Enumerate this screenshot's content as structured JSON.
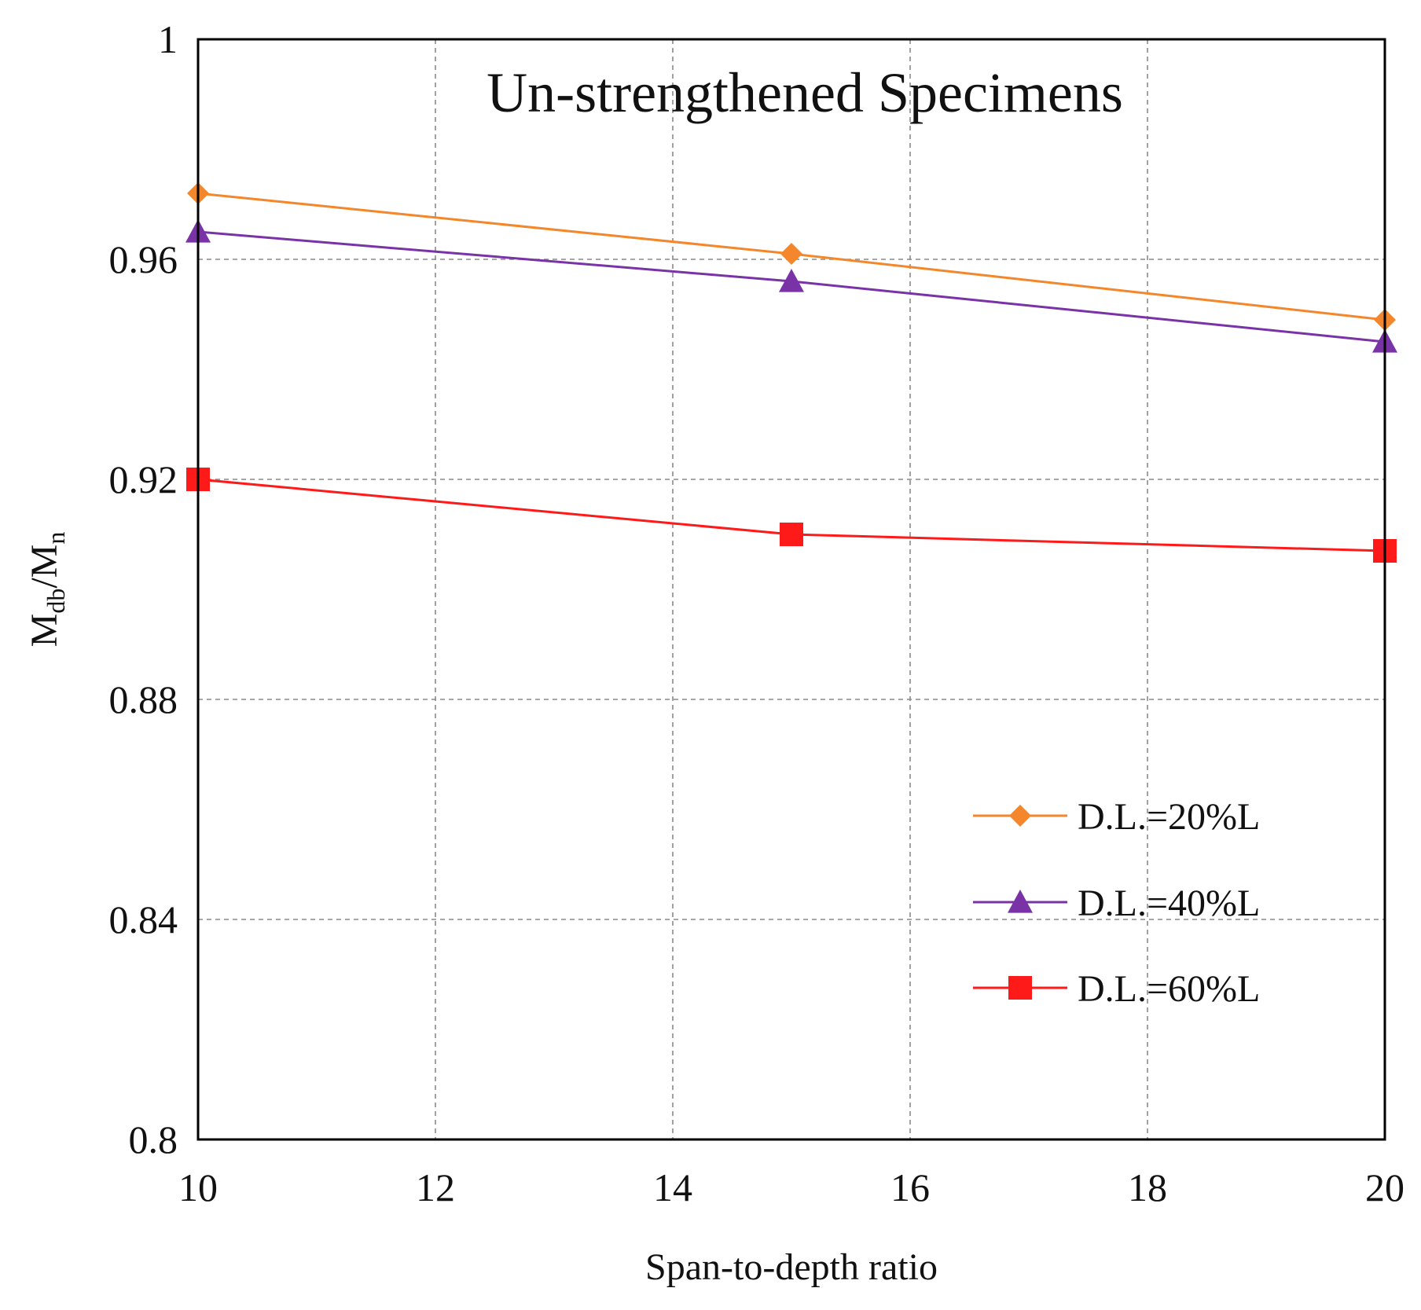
{
  "chart_data": {
    "type": "line",
    "title": "Un-strengthened Specimens",
    "xlabel": "Span-to-depth ratio",
    "ylabel": {
      "main": "M",
      "sub1": "db",
      "sep": "/M",
      "sub2": "n"
    },
    "xlim": [
      10,
      20
    ],
    "ylim": [
      0.8,
      1.0
    ],
    "x_ticks": [
      10,
      12,
      14,
      16,
      18,
      20
    ],
    "x_tick_labels": [
      "10",
      "12",
      "14",
      "16",
      "18",
      "20"
    ],
    "y_ticks": [
      0.8,
      0.84,
      0.88,
      0.92,
      0.96,
      1.0
    ],
    "y_tick_labels": [
      "0.8",
      "0.84",
      "0.88",
      "0.92",
      "0.96",
      "1"
    ],
    "grid": true,
    "legend_position": "right",
    "x": [
      10,
      15,
      20
    ],
    "series": [
      {
        "name": "D.L.=20%L",
        "values": [
          0.972,
          0.961,
          0.949
        ],
        "color": "#f4862b",
        "marker": "diamond"
      },
      {
        "name": "D.L.=40%L",
        "values": [
          0.965,
          0.956,
          0.945
        ],
        "color": "#7a33a6",
        "marker": "triangle"
      },
      {
        "name": "D.L.=60%L",
        "values": [
          0.92,
          0.91,
          0.907
        ],
        "color": "#ff1a1a",
        "marker": "square"
      }
    ]
  }
}
